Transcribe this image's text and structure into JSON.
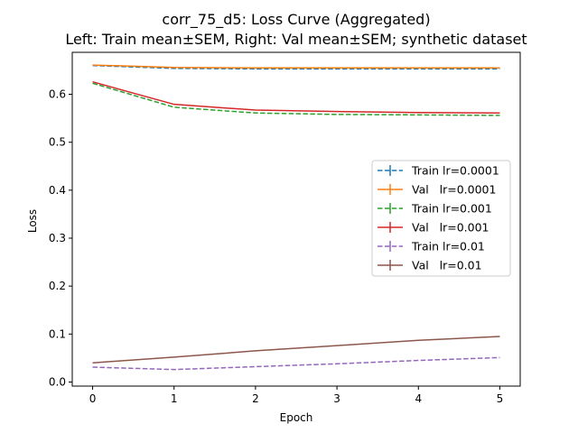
{
  "chart_data": {
    "type": "line",
    "title": "corr_75_d5: Loss Curve (Aggregated)",
    "subtitle": "Left: Train mean±SEM, Right: Val mean±SEM; synthetic dataset",
    "xlabel": "Epoch",
    "ylabel": "Loss",
    "x": [
      0,
      1,
      2,
      3,
      4,
      5
    ],
    "xlim": [
      -0.25,
      5.25
    ],
    "ylim": [
      -0.0085,
      0.6875
    ],
    "xticks": [
      "0",
      "1",
      "2",
      "3",
      "4",
      "5"
    ],
    "yticks": [
      "0.0",
      "0.1",
      "0.2",
      "0.3",
      "0.4",
      "0.5",
      "0.6"
    ],
    "grid": false,
    "legend_position": "center-right",
    "series": [
      {
        "name": "Train lr=0.0001",
        "color": "#1f77b4",
        "style": "dashed",
        "values": [
          0.66,
          0.654,
          0.653,
          0.653,
          0.653,
          0.653
        ]
      },
      {
        "name": "Val   lr=0.0001",
        "color": "#ff7f0e",
        "style": "solid",
        "values": [
          0.661,
          0.656,
          0.655,
          0.655,
          0.655,
          0.655
        ]
      },
      {
        "name": "Train lr=0.001",
        "color": "#2ca02c",
        "style": "dashed",
        "values": [
          0.623,
          0.573,
          0.561,
          0.558,
          0.557,
          0.556
        ]
      },
      {
        "name": "Val   lr=0.001",
        "color": "#d62728",
        "style": "solid",
        "values": [
          0.626,
          0.579,
          0.567,
          0.564,
          0.562,
          0.561
        ]
      },
      {
        "name": "Train lr=0.01",
        "color": "#9467bd",
        "style": "dashed",
        "values": [
          0.031,
          0.026,
          0.032,
          0.038,
          0.045,
          0.051
        ]
      },
      {
        "name": "Val   lr=0.01",
        "color": "#8c564b",
        "style": "solid",
        "values": [
          0.04,
          0.052,
          0.065,
          0.076,
          0.087,
          0.095
        ]
      }
    ]
  }
}
